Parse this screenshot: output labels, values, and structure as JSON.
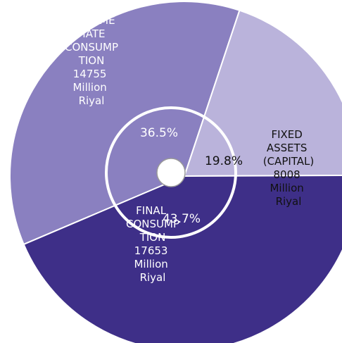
{
  "chart_data": {
    "type": "pie",
    "categories": [
      "INTERMEDIATE CONSUMPTION",
      "FIXED ASSETS (CAPITAL)",
      "FINAL CONSUMPTION"
    ],
    "values": [
      14755,
      8008,
      17653
    ],
    "value_labels": [
      "14755 Million Riyal",
      "8008 Million Riyal",
      "17653 Million Riyal"
    ],
    "percent_labels": [
      "36.5%",
      "19.8%",
      "43.7%"
    ],
    "colors": [
      "#8a80c0",
      "#bab3db",
      "#3e2f88"
    ]
  }
}
